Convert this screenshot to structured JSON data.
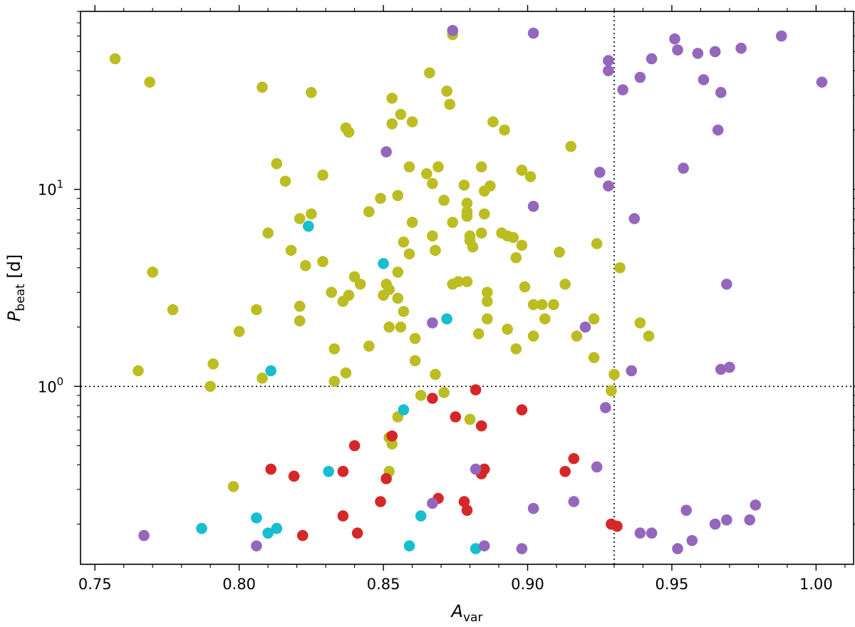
{
  "chart_data": {
    "type": "scatter",
    "xlabel": "A",
    "xlabel_sub": "var",
    "ylabel": "P",
    "ylabel_sub": "beat",
    "ylabel_unit": " [d]",
    "xlim": [
      0.745,
      1.013
    ],
    "ylim": [
      0.125,
      80
    ],
    "yscale": "log",
    "x_ticks": [
      0.75,
      0.8,
      0.85,
      0.9,
      0.95,
      1.0
    ],
    "x_tick_labels": [
      "0.75",
      "0.80",
      "0.85",
      "0.90",
      "0.95",
      "1.00"
    ],
    "y_ticks": [
      1,
      10
    ],
    "y_tick_labels": [
      {
        "base": "10",
        "exp": "0"
      },
      {
        "base": "10",
        "exp": "1"
      }
    ],
    "reference_lines": {
      "x": 0.93,
      "y": 1.0
    },
    "grid": false,
    "series": [
      {
        "color": "#bcbd22",
        "points": [
          [
            0.757,
            46
          ],
          [
            0.769,
            35
          ],
          [
            0.765,
            1.2
          ],
          [
            0.77,
            3.8
          ],
          [
            0.777,
            2.45
          ],
          [
            0.79,
            1.0
          ],
          [
            0.791,
            1.3
          ],
          [
            0.798,
            0.31
          ],
          [
            0.8,
            1.9
          ],
          [
            0.806,
            2.45
          ],
          [
            0.808,
            33
          ],
          [
            0.808,
            1.1
          ],
          [
            0.81,
            6.0
          ],
          [
            0.813,
            13.5
          ],
          [
            0.816,
            11.0
          ],
          [
            0.818,
            4.9
          ],
          [
            0.821,
            7.1
          ],
          [
            0.821,
            2.55
          ],
          [
            0.821,
            2.15
          ],
          [
            0.823,
            4.1
          ],
          [
            0.825,
            7.5
          ],
          [
            0.825,
            31
          ],
          [
            0.829,
            11.8
          ],
          [
            0.829,
            4.3
          ],
          [
            0.832,
            3.0
          ],
          [
            0.833,
            1.55
          ],
          [
            0.833,
            1.06
          ],
          [
            0.836,
            2.7
          ],
          [
            0.837,
            20.5
          ],
          [
            0.838,
            19.5
          ],
          [
            0.838,
            2.9
          ],
          [
            0.837,
            1.17
          ],
          [
            0.84,
            3.6
          ],
          [
            0.842,
            3.3
          ],
          [
            0.845,
            7.7
          ],
          [
            0.845,
            1.6
          ],
          [
            0.849,
            9.0
          ],
          [
            0.85,
            2.9
          ],
          [
            0.851,
            3.3
          ],
          [
            0.852,
            3.1
          ],
          [
            0.852,
            0.55
          ],
          [
            0.852,
            0.37
          ],
          [
            0.852,
            2.0
          ],
          [
            0.853,
            21.5
          ],
          [
            0.853,
            29
          ],
          [
            0.853,
            0.51
          ],
          [
            0.855,
            9.3
          ],
          [
            0.855,
            3.8
          ],
          [
            0.855,
            2.8
          ],
          [
            0.855,
            0.7
          ],
          [
            0.856,
            24
          ],
          [
            0.856,
            2.0
          ],
          [
            0.857,
            5.4
          ],
          [
            0.857,
            2.4
          ],
          [
            0.859,
            13.0
          ],
          [
            0.859,
            4.7
          ],
          [
            0.86,
            22
          ],
          [
            0.86,
            6.8
          ],
          [
            0.861,
            1.35
          ],
          [
            0.861,
            1.75
          ],
          [
            0.863,
            0.9
          ],
          [
            0.865,
            12.0
          ],
          [
            0.866,
            39
          ],
          [
            0.867,
            5.8
          ],
          [
            0.867,
            10.7
          ],
          [
            0.868,
            4.9
          ],
          [
            0.868,
            1.15
          ],
          [
            0.869,
            13.0
          ],
          [
            0.871,
            8.8
          ],
          [
            0.871,
            0.93
          ],
          [
            0.872,
            31.5
          ],
          [
            0.873,
            27
          ],
          [
            0.874,
            6.8
          ],
          [
            0.874,
            3.3
          ],
          [
            0.874,
            61
          ],
          [
            0.876,
            3.4
          ],
          [
            0.878,
            10.5
          ],
          [
            0.879,
            3.4
          ],
          [
            0.879,
            8.5
          ],
          [
            0.879,
            7.7
          ],
          [
            0.879,
            7.3
          ],
          [
            0.88,
            5.8
          ],
          [
            0.88,
            5.5
          ],
          [
            0.88,
            0.68
          ],
          [
            0.881,
            5.1
          ],
          [
            0.883,
            1.85
          ],
          [
            0.884,
            6.0
          ],
          [
            0.884,
            13.0
          ],
          [
            0.885,
            9.8
          ],
          [
            0.885,
            7.5
          ],
          [
            0.886,
            2.7
          ],
          [
            0.886,
            2.2
          ],
          [
            0.886,
            3.0
          ],
          [
            0.887,
            10.4
          ],
          [
            0.888,
            22
          ],
          [
            0.891,
            6.0
          ],
          [
            0.892,
            20
          ],
          [
            0.893,
            1.95
          ],
          [
            0.893,
            5.8
          ],
          [
            0.895,
            5.7
          ],
          [
            0.896,
            1.55
          ],
          [
            0.896,
            4.5
          ],
          [
            0.898,
            12.5
          ],
          [
            0.898,
            5.2
          ],
          [
            0.899,
            3.2
          ],
          [
            0.901,
            11.6
          ],
          [
            0.902,
            2.6
          ],
          [
            0.902,
            1.8
          ],
          [
            0.905,
            2.6
          ],
          [
            0.906,
            2.2
          ],
          [
            0.909,
            2.6
          ],
          [
            0.911,
            4.8
          ],
          [
            0.913,
            3.3
          ],
          [
            0.915,
            16.5
          ],
          [
            0.917,
            1.8
          ],
          [
            0.923,
            2.2
          ],
          [
            0.923,
            1.4
          ],
          [
            0.924,
            5.3
          ],
          [
            0.929,
            0.95
          ],
          [
            0.93,
            1.15
          ],
          [
            0.932,
            4.0
          ],
          [
            0.939,
            2.1
          ],
          [
            0.942,
            1.8
          ]
        ]
      },
      {
        "color": "#17becf",
        "points": [
          [
            0.787,
            0.19
          ],
          [
            0.806,
            0.215
          ],
          [
            0.81,
            0.18
          ],
          [
            0.811,
            1.2
          ],
          [
            0.813,
            0.19
          ],
          [
            0.824,
            6.5
          ],
          [
            0.831,
            0.37
          ],
          [
            0.85,
            4.2
          ],
          [
            0.857,
            0.76
          ],
          [
            0.859,
            0.155
          ],
          [
            0.863,
            0.22
          ],
          [
            0.872,
            2.2
          ],
          [
            0.882,
            0.15
          ]
        ]
      },
      {
        "color": "#d62728",
        "points": [
          [
            0.811,
            0.38
          ],
          [
            0.819,
            0.35
          ],
          [
            0.822,
            0.175
          ],
          [
            0.836,
            0.37
          ],
          [
            0.836,
            0.22
          ],
          [
            0.84,
            0.5
          ],
          [
            0.841,
            0.18
          ],
          [
            0.849,
            0.26
          ],
          [
            0.851,
            0.34
          ],
          [
            0.853,
            0.56
          ],
          [
            0.867,
            0.87
          ],
          [
            0.869,
            0.27
          ],
          [
            0.875,
            0.7
          ],
          [
            0.878,
            0.26
          ],
          [
            0.879,
            0.235
          ],
          [
            0.882,
            0.96
          ],
          [
            0.884,
            0.63
          ],
          [
            0.884,
            0.36
          ],
          [
            0.885,
            0.38
          ],
          [
            0.898,
            0.76
          ],
          [
            0.913,
            0.37
          ],
          [
            0.916,
            0.43
          ],
          [
            0.929,
            0.2
          ],
          [
            0.931,
            0.195
          ]
        ]
      },
      {
        "color": "#9467bd",
        "points": [
          [
            0.767,
            0.175
          ],
          [
            0.806,
            0.155
          ],
          [
            0.851,
            15.5
          ],
          [
            0.867,
            0.255
          ],
          [
            0.867,
            2.1
          ],
          [
            0.874,
            64
          ],
          [
            0.882,
            0.38
          ],
          [
            0.885,
            0.155
          ],
          [
            0.898,
            0.15
          ],
          [
            0.902,
            0.24
          ],
          [
            0.902,
            62
          ],
          [
            0.902,
            8.2
          ],
          [
            0.916,
            0.26
          ],
          [
            0.92,
            2.0
          ],
          [
            0.924,
            0.39
          ],
          [
            0.925,
            12.2
          ],
          [
            0.927,
            0.78
          ],
          [
            0.928,
            45
          ],
          [
            0.928,
            40
          ],
          [
            0.928,
            10.4
          ],
          [
            0.933,
            32
          ],
          [
            0.936,
            1.2
          ],
          [
            0.937,
            7.1
          ],
          [
            0.939,
            0.18
          ],
          [
            0.939,
            37
          ],
          [
            0.943,
            0.18
          ],
          [
            0.943,
            46
          ],
          [
            0.951,
            58
          ],
          [
            0.952,
            0.15
          ],
          [
            0.952,
            51
          ],
          [
            0.954,
            12.8
          ],
          [
            0.955,
            0.235
          ],
          [
            0.957,
            0.165
          ],
          [
            0.959,
            49
          ],
          [
            0.961,
            36
          ],
          [
            0.965,
            0.2
          ],
          [
            0.965,
            50
          ],
          [
            0.966,
            20
          ],
          [
            0.967,
            1.22
          ],
          [
            0.967,
            31
          ],
          [
            0.969,
            0.21
          ],
          [
            0.969,
            3.3
          ],
          [
            0.97,
            1.25
          ],
          [
            0.974,
            52
          ],
          [
            0.977,
            0.21
          ],
          [
            0.979,
            0.25
          ],
          [
            0.988,
            60
          ],
          [
            1.002,
            35
          ]
        ]
      }
    ]
  }
}
